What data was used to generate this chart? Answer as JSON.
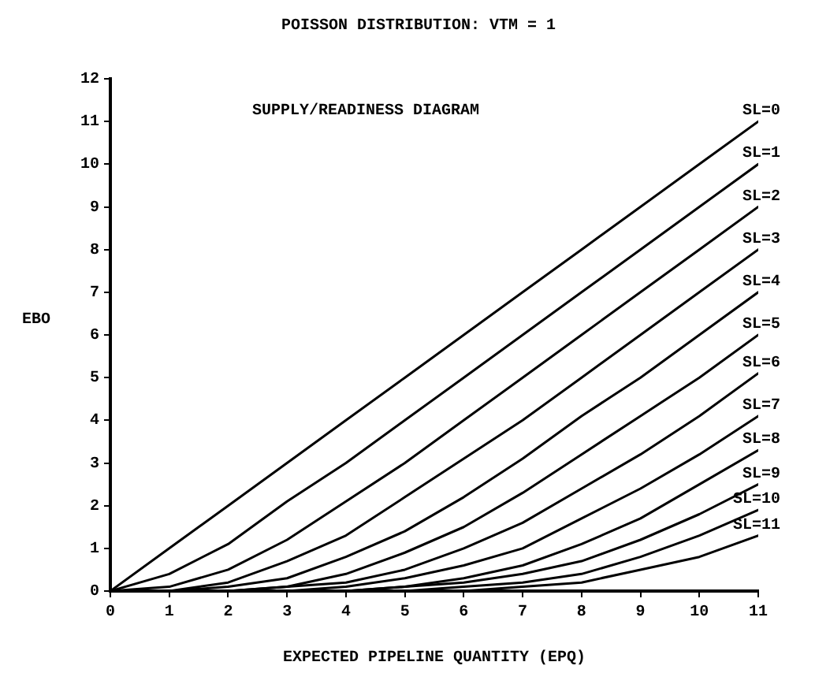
{
  "chart_data": {
    "type": "line",
    "title": "POISSON DISTRIBUTION: VTM = 1",
    "xlabel": "EXPECTED PIPELINE QUANTITY (EPQ)",
    "ylabel": "EBO",
    "annotations": [
      "SUPPLY/READINESS DIAGRAM"
    ],
    "x": [
      0,
      1,
      2,
      3,
      4,
      5,
      6,
      7,
      8,
      9,
      10,
      11
    ],
    "xlim": [
      0,
      11
    ],
    "xticks": [
      0,
      1,
      2,
      3,
      4,
      5,
      6,
      7,
      8,
      9,
      10,
      11
    ],
    "ylim": [
      0,
      12
    ],
    "yticks": [
      0,
      1,
      2,
      3,
      4,
      5,
      6,
      7,
      8,
      9,
      10,
      11,
      12
    ],
    "grid": false,
    "legend": false,
    "marker": "none",
    "line_style": "solid",
    "series": [
      {
        "name": "SL=0",
        "color": "#000000",
        "values": [
          0,
          1,
          2,
          3,
          4,
          5,
          6,
          7,
          8,
          9,
          10,
          11
        ]
      },
      {
        "name": "SL=1",
        "color": "#000000",
        "values": [
          0,
          0.4,
          1.1,
          2.1,
          3,
          4,
          5,
          6,
          7,
          8,
          9,
          10
        ]
      },
      {
        "name": "SL=2",
        "color": "#000000",
        "values": [
          0,
          0.1,
          0.5,
          1.2,
          2.1,
          3,
          4,
          5,
          6,
          7,
          8,
          9
        ]
      },
      {
        "name": "SL=3",
        "color": "#000000",
        "values": [
          0,
          0,
          0.2,
          0.7,
          1.3,
          2.2,
          3.1,
          4,
          5,
          6,
          7,
          8
        ]
      },
      {
        "name": "SL=4",
        "color": "#000000",
        "values": [
          0,
          0,
          0.1,
          0.3,
          0.8,
          1.4,
          2.2,
          3.1,
          4.1,
          5,
          6,
          7
        ]
      },
      {
        "name": "SL=5",
        "color": "#000000",
        "values": [
          0,
          0,
          0,
          0.1,
          0.4,
          0.9,
          1.5,
          2.3,
          3.2,
          4.1,
          5,
          6
        ]
      },
      {
        "name": "SL=6",
        "color": "#000000",
        "values": [
          0,
          0,
          0,
          0.1,
          0.2,
          0.5,
          1,
          1.6,
          2.4,
          3.2,
          4.1,
          5.1
        ]
      },
      {
        "name": "SL=7",
        "color": "#000000",
        "values": [
          0,
          0,
          0,
          0,
          0.1,
          0.3,
          0.6,
          1,
          1.7,
          2.4,
          3.2,
          4.1
        ]
      },
      {
        "name": "SL=8",
        "color": "#000000",
        "values": [
          0,
          0,
          0,
          0,
          0,
          0.1,
          0.3,
          0.6,
          1.1,
          1.7,
          2.5,
          3.3
        ]
      },
      {
        "name": "SL=9",
        "color": "#000000",
        "values": [
          0,
          0,
          0,
          0,
          0,
          0.1,
          0.2,
          0.4,
          0.7,
          1.2,
          1.8,
          2.5
        ]
      },
      {
        "name": "SL=10",
        "color": "#000000",
        "values": [
          0,
          0,
          0,
          0,
          0,
          0,
          0.1,
          0.2,
          0.4,
          0.8,
          1.3,
          1.9
        ]
      },
      {
        "name": "SL=11",
        "color": "#000000",
        "values": [
          0,
          0,
          0,
          0,
          0,
          0,
          0,
          0.1,
          0.2,
          0.5,
          0.8,
          1.3
        ]
      }
    ]
  }
}
